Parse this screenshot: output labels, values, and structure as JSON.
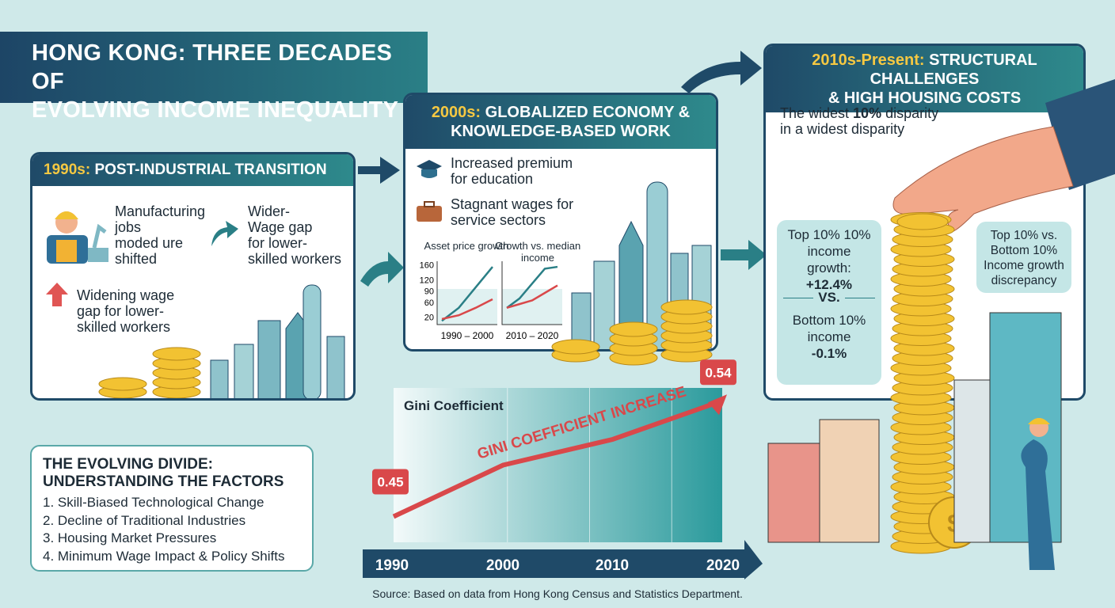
{
  "title": {
    "line1": "HONG KONG: THREE DECADES OF",
    "line2": "EVOLVING INCOME INEQUALITY"
  },
  "s1990": {
    "year": "1990s:",
    "heading": "POST-INDUSTRIAL TRANSITION",
    "item1": [
      "Manufacturing",
      "jobs",
      "moded ure",
      "shifted"
    ],
    "item2": [
      "Wider-",
      "Wage gap",
      "for lower-",
      "skilled workers"
    ],
    "item3": [
      "Widening wage",
      "gap for lower-",
      "skilled workers"
    ]
  },
  "s2000": {
    "year": "2000s:",
    "heading1": "GLOBALIZED ECONOMY &",
    "heading2": "KNOWLEDGE-BASED WORK",
    "item1": [
      "Increased premium",
      "for education"
    ],
    "item2": [
      "Stagnant wages for",
      "service sectors"
    ]
  },
  "s2010": {
    "year": "2010s-Present:",
    "heading1": "STRUCTURAL CHALLENGES",
    "heading2": "& HIGH HOUSING COSTS",
    "intro_pre": "The widest ",
    "intro_bold": "10%",
    "intro_post": " disparity",
    "intro2": "in a widest disparity",
    "left_bubble": {
      "l1": "Top 10% 10%",
      "l2": "income",
      "l3": "growth:",
      "v1": "+12.4%",
      "vs": "VS.",
      "l4": "Bottom 10%",
      "l5": "income",
      "v2": "-0.1%"
    },
    "right_bubble": [
      "Top 10% vs.",
      "Bottom 10%",
      "Income growth",
      "discrepancy"
    ]
  },
  "factors": {
    "title1": "THE EVOLVING DIVIDE:",
    "title2": "UNDERSTANDING THE FACTORS",
    "items": [
      "1. Skill-Biased Technological Change",
      "2. Decline of Traditional Industries",
      "3. Housing Market Pressures",
      "4. Minimum Wage Impact & Policy Shifts"
    ]
  },
  "source": "Source: Based on data from Hong Kong Census and Statistics Department.",
  "colors": {
    "navy": "#1f4a68",
    "teal": "#2e8a8c",
    "gold": "#f5c842",
    "red": "#d9484a",
    "background": "#cfe9e9"
  },
  "chart_data": [
    {
      "type": "line",
      "title": "Asset price growth",
      "xlabel": "1990 – 2000",
      "yticks": [
        20,
        60,
        90,
        120,
        160
      ],
      "ylim": [
        0,
        170
      ],
      "x": [
        0,
        1,
        2,
        3
      ],
      "series": [
        {
          "color": "#2a7f86",
          "values": [
            10,
            45,
            100,
            155
          ]
        },
        {
          "color": "#d9484a",
          "values": [
            15,
            25,
            45,
            68
          ]
        }
      ]
    },
    {
      "type": "line",
      "title": "Growth vs. median income",
      "xlabel": "2010 – 2020",
      "ylim": [
        0,
        170
      ],
      "x": [
        0,
        1,
        2,
        3,
        4
      ],
      "series": [
        {
          "color": "#2a7f86",
          "values": [
            45,
            70,
            110,
            150,
            155
          ]
        },
        {
          "color": "#d9484a",
          "values": [
            45,
            55,
            65,
            85,
            105
          ]
        }
      ]
    },
    {
      "type": "line",
      "title": "Gini Coefficient",
      "annotation": "GINI COEFFICIENT INCREASE",
      "x": [
        1990,
        2000,
        2010,
        2020
      ],
      "xticks": [
        "1990",
        "2000",
        "2010",
        "2020"
      ],
      "ylim": [
        0.43,
        0.55
      ],
      "series": [
        {
          "color": "#d9484a",
          "values": [
            0.45,
            0.49,
            0.51,
            0.54
          ]
        }
      ],
      "labels": {
        "start": "0.45",
        "end": "0.54"
      }
    }
  ]
}
